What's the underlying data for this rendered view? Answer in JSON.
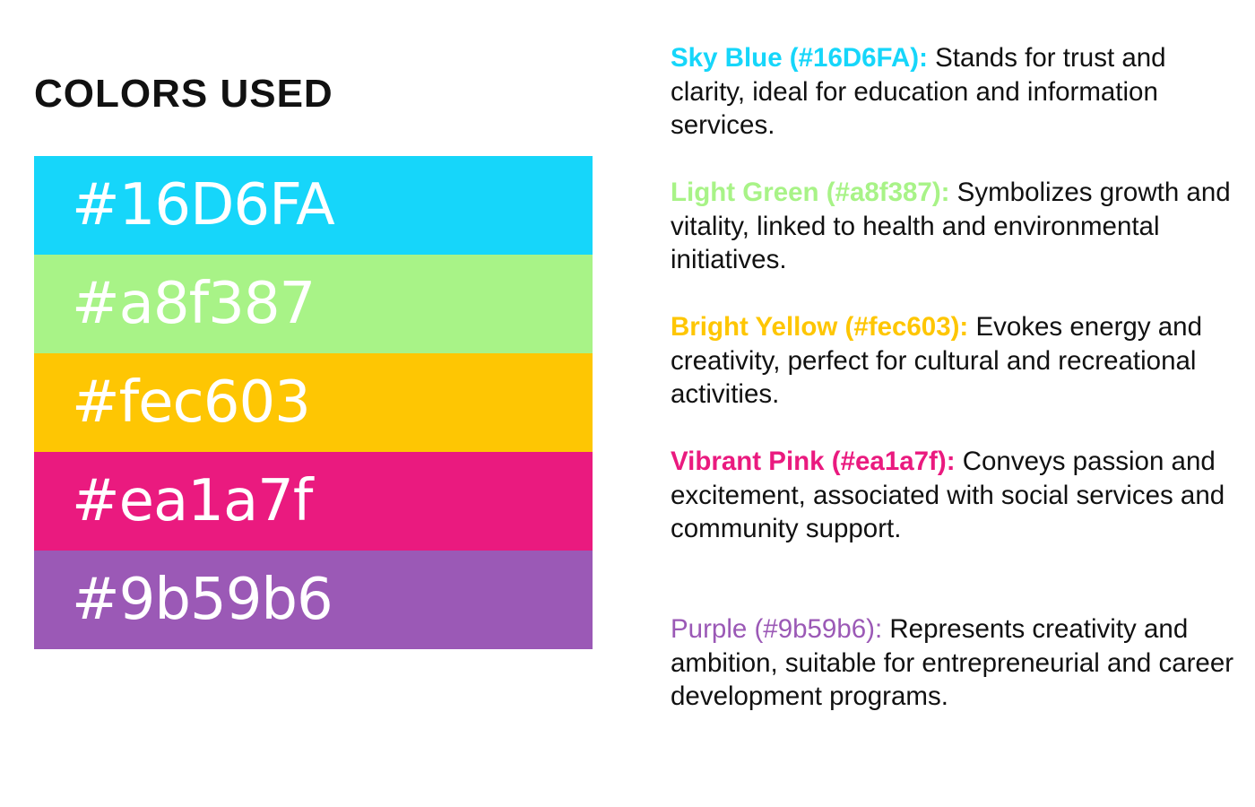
{
  "title": "COLORS USED",
  "swatches": [
    {
      "hex": "#16D6FA",
      "color": "#16D6FA"
    },
    {
      "hex": "#a8f387",
      "color": "#a8f387"
    },
    {
      "hex": "#fec603",
      "color": "#fec603"
    },
    {
      "hex": "#ea1a7f",
      "color": "#ea1a7f"
    },
    {
      "hex": "#9b59b6",
      "color": "#9b59b6"
    }
  ],
  "descriptions": [
    {
      "label": "Sky Blue (#16D6FA):",
      "text": " Stands for trust and clarity, ideal for education and information services.",
      "color": "#16D6FA"
    },
    {
      "label": "Light Green (#a8f387):",
      "text": " Symbolizes growth and vitality, linked to health and environmental initiatives.",
      "color": "#a8f387"
    },
    {
      "label": "Bright Yellow (#fec603):",
      "text": " Evokes energy and creativity, perfect for cultural and recreational activities.",
      "color": "#fec603"
    },
    {
      "label": "Vibrant Pink (#ea1a7f):",
      "text": " Conveys passion and excitement, associated with social services and community support.",
      "color": "#ea1a7f"
    },
    {
      "label": "Purple (#9b59b6):",
      "text": " Represents creativity and ambition, suitable for entrepreneurial and career development programs.",
      "color": "#9b59b6"
    }
  ]
}
